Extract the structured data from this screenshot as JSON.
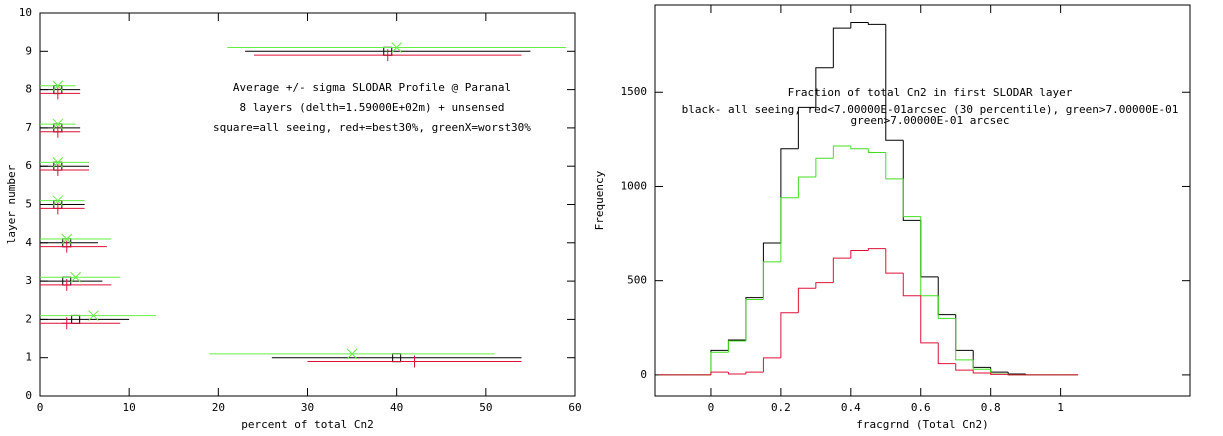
{
  "chart_data": [
    {
      "type": "errorbar",
      "annotations": [
        "Average +/- sigma SLODAR Profile @ Paranal",
        "8 layers (delth=1.59000E+02m) + unsensed",
        "square=all seeing, red+=best30%, greenX=worst30%"
      ],
      "xlabel": "percent of total Cn2",
      "ylabel": "layer number",
      "xlim": [
        0,
        60
      ],
      "xticks": [
        0,
        10,
        20,
        30,
        40,
        50,
        60
      ],
      "ylim": [
        0,
        10
      ],
      "yticks": [
        0,
        1,
        2,
        3,
        4,
        5,
        6,
        7,
        8,
        9,
        10
      ],
      "y": [
        1,
        2,
        3,
        4,
        5,
        6,
        7,
        8,
        9
      ],
      "series": [
        {
          "color": "#000000",
          "marker": "square",
          "x": [
            40,
            4,
            3,
            3,
            2,
            2,
            2,
            2,
            39
          ],
          "xerr": [
            14,
            6,
            4,
            3.5,
            3,
            3.5,
            2.5,
            2.5,
            16
          ]
        },
        {
          "color": "#e0103a",
          "marker": "plus",
          "x": [
            42,
            3,
            3,
            3,
            2,
            2,
            2,
            2,
            39
          ],
          "xerr": [
            12,
            6,
            5,
            4.5,
            3,
            3.5,
            2.5,
            2.5,
            15
          ]
        },
        {
          "color": "#66ee44",
          "marker": "x",
          "x": [
            35,
            6,
            4,
            3,
            2,
            2,
            2,
            2,
            40
          ],
          "xerr": [
            16,
            7,
            5,
            5,
            3,
            3.5,
            2,
            2,
            19
          ]
        }
      ]
    },
    {
      "type": "histogram",
      "title": "Fraction of total Cn2 in first SLODAR layer",
      "subtitle": [
        "black- all seeing, red<7.00000E-01arcsec (30 percentile), green>7.00000E-01",
        "green>7.00000E-01 arcsec"
      ],
      "xlabel": "fracgrnd (Total Cn2)",
      "ylabel": "Frequency",
      "xlim": [
        -0.16,
        1.37
      ],
      "xticks": [
        0,
        0.2,
        0.4,
        0.6,
        0.8,
        1
      ],
      "ylim": [
        -112,
        1963
      ],
      "yticks": [
        0,
        500,
        1000,
        1500
      ],
      "bins": [
        -0.15,
        -0.1,
        -0.05,
        0,
        0.05,
        0.1,
        0.15,
        0.2,
        0.25,
        0.3,
        0.35,
        0.4,
        0.45,
        0.5,
        0.55,
        0.6,
        0.65,
        0.7,
        0.75,
        0.8,
        0.85,
        0.9,
        0.95,
        1.0,
        1.05
      ],
      "series": [
        {
          "color": "#000000",
          "values": [
            0,
            0,
            0,
            130,
            185,
            410,
            700,
            1200,
            1420,
            1630,
            1840,
            1870,
            1860,
            1245,
            820,
            520,
            320,
            130,
            40,
            15,
            5,
            0,
            0,
            0
          ]
        },
        {
          "color": "#44dd22",
          "values": [
            0,
            0,
            0,
            120,
            180,
            400,
            600,
            940,
            1050,
            1150,
            1215,
            1200,
            1180,
            1040,
            840,
            420,
            300,
            80,
            30,
            5,
            0,
            0,
            0,
            0
          ]
        },
        {
          "color": "#e0103a",
          "values": [
            0,
            0,
            0,
            15,
            5,
            15,
            90,
            330,
            460,
            490,
            620,
            660,
            670,
            540,
            420,
            170,
            60,
            25,
            10,
            3,
            0,
            0,
            0,
            0
          ]
        }
      ]
    }
  ]
}
